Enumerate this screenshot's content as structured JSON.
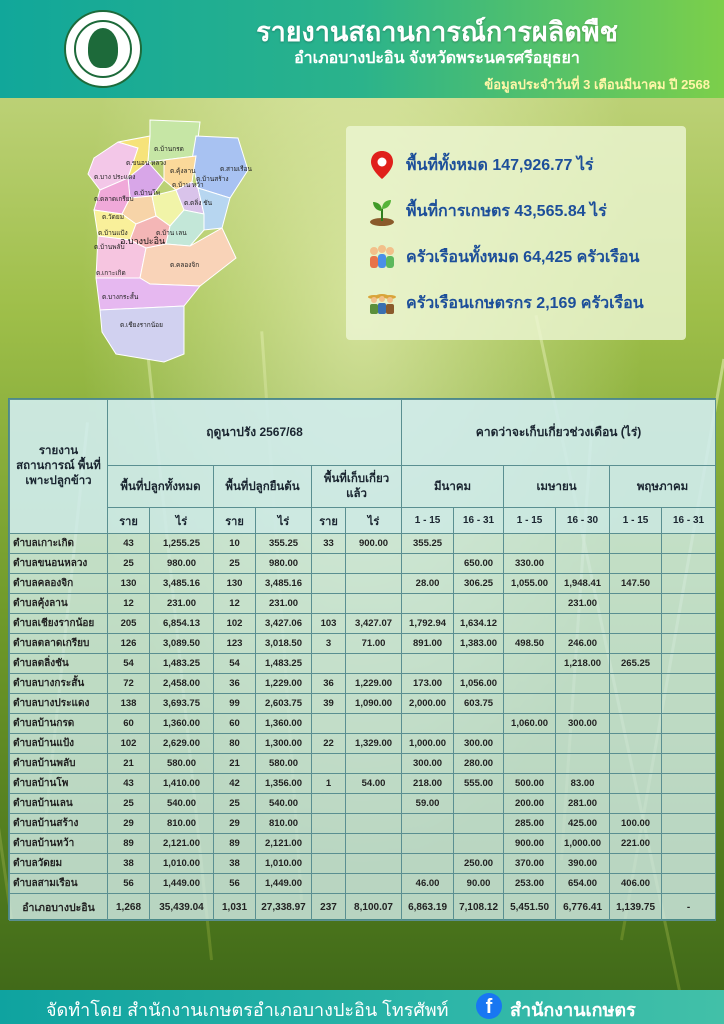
{
  "header": {
    "title": "รายงานสถานการณ์การผลิตพืช",
    "subtitle": "อำเภอบางปะอิน จังหวัดพระนครศรีอยุธยา",
    "date_line": "ข้อมูลประจำวันที่  3  เดือนมีนาคม ปี 2568"
  },
  "map": {
    "labels": [
      "ต.บ้านกรด",
      "ต.ขนอน หลวง",
      "ต.บาง ประแดง",
      "ต.สามเรือน",
      "ต.คุ้งลาน",
      "ต.ตลาดเกรียบ",
      "ต.บ้านโพ",
      "ต.บ้าน หว้า",
      "ต.บ้านสร้าง",
      "ต.วัดยม",
      "ต.บ้านแป้ง",
      "ต.บ้าน เลน",
      "ต.บ้านพลับ",
      "ต.เกาะเกิด",
      "ต.คลองจิก",
      "ต.บางกระสั้น",
      "ต.เชียงรากน้อย",
      "ต.ตลิ่ง ชัน"
    ],
    "center_label": "อ.บางปะอิน"
  },
  "info": {
    "total_area": "พื้นที่ทั้งหมด 147,926.77 ไร่",
    "agri_area": "พื้นที่การเกษตร 43,565.84 ไร่",
    "households": "ครัวเรือนทั้งหมด 64,425 ครัวเรือน",
    "farm_households": "ครัวเรือนเกษตรกร 2,169 ครัวเรือน"
  },
  "table": {
    "corner_label": "รายงาน สถานการณ์ พื้นที่ เพาะปลูกข้าว",
    "season_label": "ฤดูนาปรัง 2567/68",
    "forecast_label": "คาดว่าจะเก็บเกี่ยวช่วงเดือน (ไร่)",
    "group_planted": "พื้นที่ปลูกทั้งหมด",
    "group_standing": "พื้นที่ปลูกยืนต้น",
    "group_harvested": "พื้นที่เก็บเกี่ยว แล้ว",
    "months": [
      "มีนาคม",
      "เมษายน",
      "พฤษภาคม"
    ],
    "unit_hh": "ราย",
    "unit_rai": "ไร่",
    "periods": [
      "1 - 15",
      "16 - 31",
      "1 - 15",
      "16 - 30",
      "1 - 15",
      "16 - 31"
    ],
    "rows": [
      [
        "ตำบลเกาะเกิด",
        "43",
        "1,255.25",
        "10",
        "355.25",
        "33",
        "900.00",
        "355.25",
        "",
        "",
        "",
        "",
        ""
      ],
      [
        "ตำบลขนอนหลวง",
        "25",
        "980.00",
        "25",
        "980.00",
        "",
        "",
        "",
        "650.00",
        "330.00",
        "",
        "",
        ""
      ],
      [
        "ตำบลคลองจิก",
        "130",
        "3,485.16",
        "130",
        "3,485.16",
        "",
        "",
        "28.00",
        "306.25",
        "1,055.00",
        "1,948.41",
        "147.50",
        ""
      ],
      [
        "ตำบลคุ้งลาน",
        "12",
        "231.00",
        "12",
        "231.00",
        "",
        "",
        "",
        "",
        "",
        "231.00",
        "",
        ""
      ],
      [
        "ตำบลเชียงรากน้อย",
        "205",
        "6,854.13",
        "102",
        "3,427.06",
        "103",
        "3,427.07",
        "1,792.94",
        "1,634.12",
        "",
        "",
        "",
        ""
      ],
      [
        "ตำบลตลาดเกรียบ",
        "126",
        "3,089.50",
        "123",
        "3,018.50",
        "3",
        "71.00",
        "891.00",
        "1,383.00",
        "498.50",
        "246.00",
        "",
        ""
      ],
      [
        "ตำบลตลิ่งชัน",
        "54",
        "1,483.25",
        "54",
        "1,483.25",
        "",
        "",
        "",
        "",
        "",
        "1,218.00",
        "265.25",
        ""
      ],
      [
        "ตำบลบางกระสั้น",
        "72",
        "2,458.00",
        "36",
        "1,229.00",
        "36",
        "1,229.00",
        "173.00",
        "1,056.00",
        "",
        "",
        "",
        ""
      ],
      [
        "ตำบลบางประแดง",
        "138",
        "3,693.75",
        "99",
        "2,603.75",
        "39",
        "1,090.00",
        "2,000.00",
        "603.75",
        "",
        "",
        "",
        ""
      ],
      [
        "ตำบลบ้านกรด",
        "60",
        "1,360.00",
        "60",
        "1,360.00",
        "",
        "",
        "",
        "",
        "1,060.00",
        "300.00",
        "",
        ""
      ],
      [
        "ตำบลบ้านแป้ง",
        "102",
        "2,629.00",
        "80",
        "1,300.00",
        "22",
        "1,329.00",
        "1,000.00",
        "300.00",
        "",
        "",
        "",
        ""
      ],
      [
        "ตำบลบ้านพลับ",
        "21",
        "580.00",
        "21",
        "580.00",
        "",
        "",
        "300.00",
        "280.00",
        "",
        "",
        "",
        ""
      ],
      [
        "ตำบลบ้านโพ",
        "43",
        "1,410.00",
        "42",
        "1,356.00",
        "1",
        "54.00",
        "218.00",
        "555.00",
        "500.00",
        "83.00",
        "",
        ""
      ],
      [
        "ตำบลบ้านเลน",
        "25",
        "540.00",
        "25",
        "540.00",
        "",
        "",
        "59.00",
        "",
        "200.00",
        "281.00",
        "",
        ""
      ],
      [
        "ตำบลบ้านสร้าง",
        "29",
        "810.00",
        "29",
        "810.00",
        "",
        "",
        "",
        "",
        "285.00",
        "425.00",
        "100.00",
        ""
      ],
      [
        "ตำบลบ้านหว้า",
        "89",
        "2,121.00",
        "89",
        "2,121.00",
        "",
        "",
        "",
        "",
        "900.00",
        "1,000.00",
        "221.00",
        ""
      ],
      [
        "ตำบลวัดยม",
        "38",
        "1,010.00",
        "38",
        "1,010.00",
        "",
        "",
        "",
        "250.00",
        "370.00",
        "390.00",
        "",
        ""
      ],
      [
        "ตำบลสามเรือน",
        "56",
        "1,449.00",
        "56",
        "1,449.00",
        "",
        "",
        "46.00",
        "90.00",
        "253.00",
        "654.00",
        "406.00",
        ""
      ]
    ],
    "total": [
      "อำเภอบางปะอิน",
      "1,268",
      "35,439.04",
      "1,031",
      "27,338.97",
      "237",
      "8,100.07",
      "6,863.19",
      "7,108.12",
      "5,451.50",
      "6,776.41",
      "1,139.75",
      "-"
    ]
  },
  "footer": {
    "text": "จัดทำโดย สำนักงานเกษตรอำเภอบางปะอิน  โทรศัพท์",
    "fb_letter": "f",
    "page_name": "สำนักงานเกษตร"
  }
}
